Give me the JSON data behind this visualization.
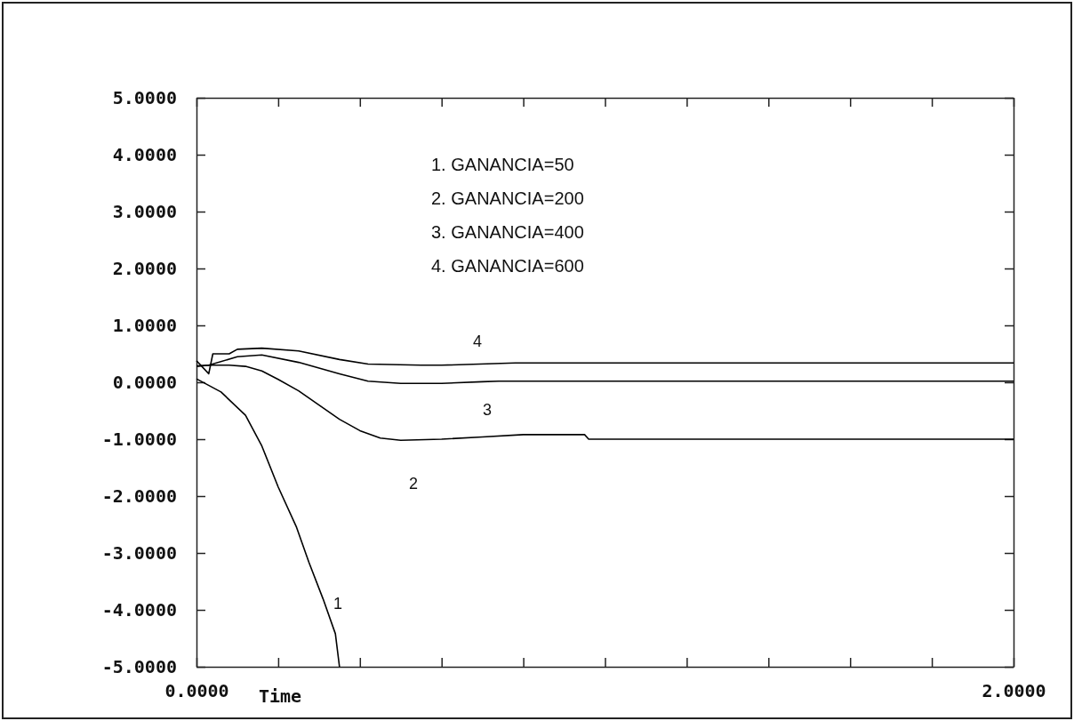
{
  "chart_data": {
    "type": "line",
    "xlabel": "Time",
    "xlim": [
      0,
      2
    ],
    "xticks": [
      {
        "value": 0,
        "label": "0.0000"
      },
      {
        "value": 0.2,
        "label": null
      },
      {
        "value": 0.4,
        "label": null
      },
      {
        "value": 0.6,
        "label": null
      },
      {
        "value": 0.8,
        "label": null
      },
      {
        "value": 1.0,
        "label": null
      },
      {
        "value": 1.2,
        "label": null
      },
      {
        "value": 1.4,
        "label": null
      },
      {
        "value": 1.6,
        "label": null
      },
      {
        "value": 1.8,
        "label": null
      },
      {
        "value": 2,
        "label": "2.0000"
      }
    ],
    "ylim": [
      -5,
      5
    ],
    "yticks": [
      {
        "value": 5,
        "label": "5.0000"
      },
      {
        "value": 4,
        "label": "4.0000"
      },
      {
        "value": 3,
        "label": "3.0000"
      },
      {
        "value": 2,
        "label": "2.0000"
      },
      {
        "value": 1,
        "label": "1.0000"
      },
      {
        "value": 0,
        "label": "0.0000"
      },
      {
        "value": -1,
        "label": "-1.0000"
      },
      {
        "value": -2,
        "label": "-2.0000"
      },
      {
        "value": -3,
        "label": "-3.0000"
      },
      {
        "value": -4,
        "label": "-4.0000"
      },
      {
        "value": -5,
        "label": "-5.0000"
      }
    ],
    "grid": false,
    "marker": "none",
    "line_style": "solid",
    "series": [
      {
        "color": "#000000",
        "x": [
          0,
          0.06,
          0.12,
          0.16,
          0.2,
          0.245,
          0.275,
          0.31,
          0.34,
          0.35
        ],
        "values": [
          0.06,
          -0.17,
          -0.58,
          -1.12,
          -1.84,
          -2.55,
          -3.16,
          -3.81,
          -4.42,
          -5.0
        ]
      },
      {
        "color": "#000000",
        "x": [
          0,
          0.04,
          0.08,
          0.12,
          0.16,
          0.2,
          0.25,
          0.3,
          0.35,
          0.4,
          0.45,
          0.5,
          0.6,
          0.7,
          0.8,
          0.95,
          0.96,
          2.0
        ],
        "values": [
          0.29,
          0.3,
          0.3,
          0.28,
          0.2,
          0.05,
          -0.15,
          -0.4,
          -0.65,
          -0.85,
          -0.98,
          -1.02,
          -1.0,
          -0.96,
          -0.92,
          -0.92,
          -1.0,
          -1.0
        ]
      },
      {
        "color": "#000000",
        "x": [
          0,
          0.03,
          0.1,
          0.16,
          0.25,
          0.35,
          0.42,
          0.5,
          0.6,
          0.7,
          0.74,
          2.0
        ],
        "values": [
          0.28,
          0.3,
          0.45,
          0.48,
          0.35,
          0.15,
          0.02,
          -0.02,
          -0.02,
          0.01,
          0.02,
          0.02
        ]
      },
      {
        "color": "#000000",
        "x": [
          0,
          0.03,
          0.04,
          0.08,
          0.1,
          0.16,
          0.25,
          0.35,
          0.42,
          0.55,
          0.6,
          0.78,
          2.0
        ],
        "values": [
          0.38,
          0.15,
          0.5,
          0.5,
          0.58,
          0.6,
          0.55,
          0.4,
          0.32,
          0.3,
          0.3,
          0.34,
          0.34
        ]
      }
    ],
    "annotations": [
      "1. GANANCIA=50",
      "2. GANANCIA=200",
      "3. GANANCIA=400",
      "4. GANANCIA=600",
      "1",
      "2",
      "3",
      "4"
    ]
  }
}
